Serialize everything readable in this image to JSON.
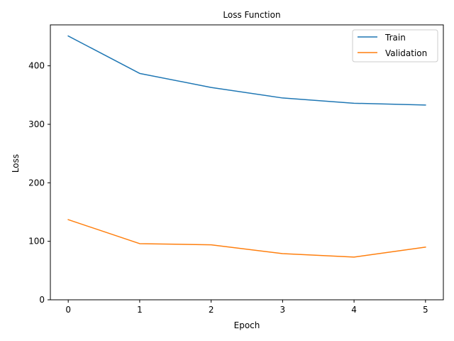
{
  "chart_data": {
    "type": "line",
    "title": "Loss Function",
    "xlabel": "Epoch",
    "ylabel": "Loss",
    "x": [
      0,
      1,
      2,
      3,
      4,
      5
    ],
    "xlim": [
      -0.25,
      5.25
    ],
    "ylim": [
      0,
      470
    ],
    "xticks": [
      0,
      1,
      2,
      3,
      4,
      5
    ],
    "yticks": [
      0,
      100,
      200,
      300,
      400
    ],
    "grid": false,
    "legend_position": "top-right",
    "series": [
      {
        "name": "Train",
        "color": "#1f77b4",
        "values": [
          451,
          387,
          363,
          345,
          336,
          333
        ]
      },
      {
        "name": "Validation",
        "color": "#ff7f0e",
        "values": [
          137,
          96,
          94,
          79,
          73,
          90
        ]
      }
    ]
  }
}
